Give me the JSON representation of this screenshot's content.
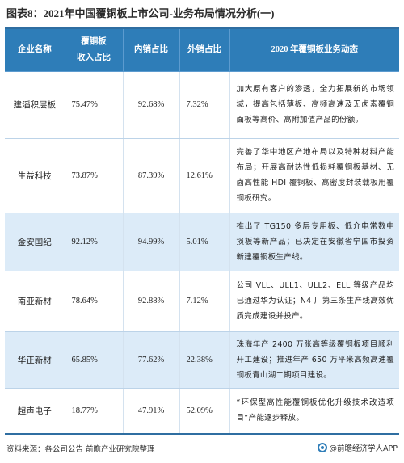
{
  "title": "图表8：2021年中国覆铜板上市公司-业务布局情况分析(一)",
  "table": {
    "headers": {
      "company": "企业名称",
      "revenue_share": "覆铜板\n收入占比",
      "domestic": "内销占比",
      "export": "外销占比",
      "business": "2020 年覆铜板业务动态"
    },
    "rows": [
      {
        "company": "建滔积层板",
        "revenue_share": "75.47%",
        "domestic": "92.68%",
        "export": "7.32%",
        "business": "加大原有客户的渗透，全力拓展新的市场领域，提高包括薄板、高频高速及无卤素覆铜面板等高价、高附加值产品的份额。"
      },
      {
        "company": "生益科技",
        "revenue_share": "73.87%",
        "domestic": "87.39%",
        "export": "12.61%",
        "business": "完善了华中地区产地布局以及特种材料产能布局；开展高耐热性低损耗覆铜板基材、无卤高性能 HDI 覆铜板、高密度封装载板用覆铜板研究。"
      },
      {
        "company": "金安国纪",
        "revenue_share": "92.12%",
        "domestic": "94.99%",
        "export": "5.01%",
        "business": "推出了 TG150 多层专用板、低介电常数中损板等新产品；已决定在安徽省宁国市投资新建覆铜板生产线。"
      },
      {
        "company": "南亚新材",
        "revenue_share": "78.64%",
        "domestic": "92.88%",
        "export": "7.12%",
        "business": "公司 VLL、ULL1、ULL2、ELL 等级产品均已通过华为认证；N4 厂第三条生产线高效优质完成建设并投产。"
      },
      {
        "company": "华正新材",
        "revenue_share": "65.85%",
        "domestic": "77.62%",
        "export": "22.38%",
        "business": "珠海年产 2400 万张高等级覆铜板项目顺利开工建设；推进年产 650 万平米高频高速覆铜板青山湖二期项目建设。"
      },
      {
        "company": "超声电子",
        "revenue_share": "18.77%",
        "domestic": "47.91%",
        "export": "52.09%",
        "business": "“环保型高性能覆铜板优化升级技术改造项目”产能逐步释放。"
      }
    ]
  },
  "footer": {
    "source": "资料来源：各公司公告 前瞻产业研究院整理",
    "brand": "@前瞻经济学人APP",
    "brand_icon": "qianzhan-logo-icon"
  },
  "colors": {
    "header_bg": "#2e7db8",
    "row_stripe": "#dcebf8",
    "border_accent": "#2f6ea1"
  }
}
